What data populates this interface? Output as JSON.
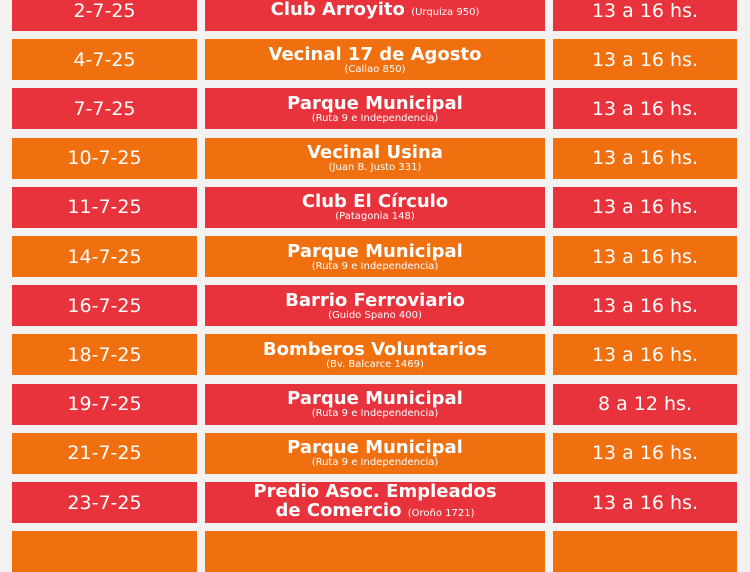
{
  "colors": {
    "red": "#e8323c",
    "orange": "#f07010"
  },
  "rows": [
    {
      "date": "2-7-25",
      "place": "Club Arroyito",
      "address": "(Urquiza 950)",
      "inline": true,
      "time": "13 a 16 hs.",
      "color": "red"
    },
    {
      "date": "4-7-25",
      "place": "Vecinal 17 de Agosto",
      "address": "(Callao 850)",
      "time": "13 a 16 hs.",
      "color": "orange"
    },
    {
      "date": "7-7-25",
      "place": "Parque Municipal",
      "address": "(Ruta 9 e Independencia)",
      "time": "13 a 16 hs.",
      "color": "red"
    },
    {
      "date": "10-7-25",
      "place": "Vecinal Usina",
      "address": "(Juan B. Justo 331)",
      "time": "13 a 16 hs.",
      "color": "orange"
    },
    {
      "date": "11-7-25",
      "place": "Club El Círculo",
      "address": "(Patagonia 148)",
      "time": "13 a 16 hs.",
      "color": "red"
    },
    {
      "date": "14-7-25",
      "place": "Parque Municipal",
      "address": "(Ruta 9 e Independencia)",
      "time": "13 a 16 hs.",
      "color": "orange"
    },
    {
      "date": "16-7-25",
      "place": "Barrio Ferroviario",
      "address": "(Guido Spano 400)",
      "time": "13 a 16 hs.",
      "color": "red"
    },
    {
      "date": "18-7-25",
      "place": "Bomberos Voluntarios",
      "address": "(Bv. Balcarce 1469)",
      "time": "13 a 16 hs.",
      "color": "orange"
    },
    {
      "date": "19-7-25",
      "place": "Parque Municipal",
      "address": "(Ruta 9 e Independencia)",
      "time": "8 a 12 hs.",
      "color": "red"
    },
    {
      "date": "21-7-25",
      "place": "Parque Municipal",
      "address": "(Ruta 9 e Independencia)",
      "time": "13 a 16 hs.",
      "color": "orange"
    },
    {
      "date": "23-7-25",
      "place": "Predio Asoc. Empleados",
      "place2": "de Comercio",
      "address": "(Oroño 1721)",
      "time": "13 a 16 hs.",
      "color": "red"
    },
    {
      "date": "",
      "place": "",
      "address": "",
      "time": "",
      "color": "orange"
    }
  ]
}
